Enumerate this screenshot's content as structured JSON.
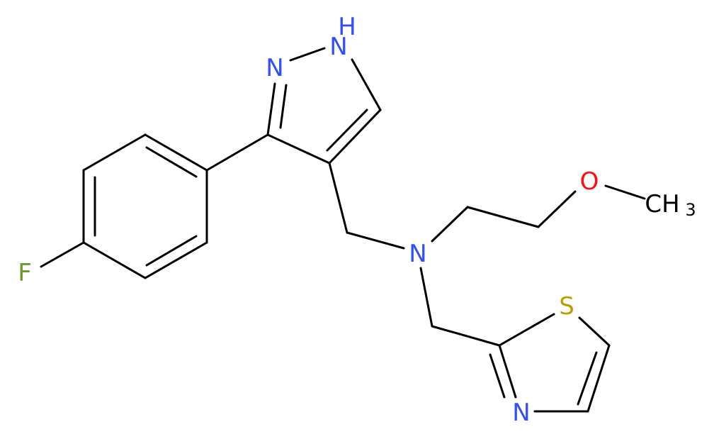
{
  "atoms": [
    {
      "label": "F"
    },
    {
      "label": "N"
    },
    {
      "label": "N"
    },
    {
      "label": "H"
    },
    {
      "label": "N"
    },
    {
      "label": "O"
    },
    {
      "label": "CH",
      "subscript": "3"
    },
    {
      "label": "S"
    },
    {
      "label": "N"
    }
  ]
}
